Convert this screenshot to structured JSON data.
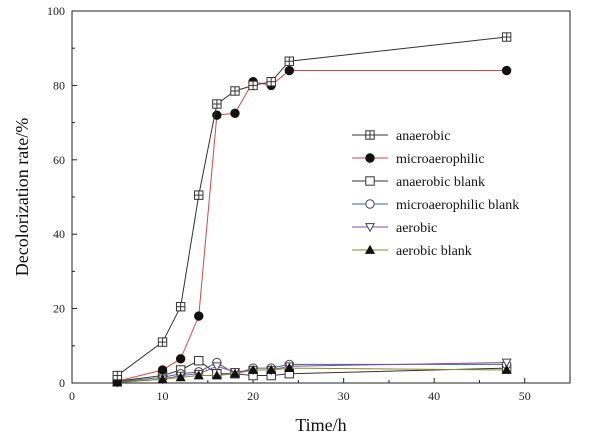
{
  "chart_data": {
    "type": "line",
    "xlabel": "Time/h",
    "ylabel": "Decolorization rate/%",
    "xlim": [
      0,
      55
    ],
    "ylim": [
      0,
      100
    ],
    "xticks": [
      0,
      10,
      20,
      30,
      40,
      50
    ],
    "yticks": [
      0,
      20,
      40,
      60,
      80,
      100
    ],
    "grid": false,
    "legend_position": "center-right",
    "series": [
      {
        "name": "anaerobic",
        "marker": "boxplus",
        "color": "#333333",
        "x": [
          5,
          10,
          12,
          14,
          16,
          18,
          20,
          22,
          24,
          48
        ],
        "y": [
          2,
          11,
          20.5,
          50.5,
          75,
          78.5,
          80,
          81,
          86.5,
          93
        ]
      },
      {
        "name": "microaerophilic",
        "marker": "circle-filled",
        "color": "#d04848",
        "x": [
          5,
          10,
          12,
          14,
          16,
          18,
          20,
          22,
          24,
          48
        ],
        "y": [
          0.5,
          3.5,
          6.5,
          18,
          72,
          72.5,
          81,
          80,
          84,
          84
        ]
      },
      {
        "name": "anaerobic blank",
        "marker": "square-open",
        "color": "#333333",
        "x": [
          5,
          10,
          12,
          14,
          16,
          18,
          20,
          22,
          24,
          48
        ],
        "y": [
          0.5,
          2,
          3.5,
          6,
          2.5,
          2.5,
          2,
          2,
          2.5,
          4
        ]
      },
      {
        "name": "microaerophilic blank",
        "marker": "circle-open",
        "color": "#3a6a8a",
        "x": [
          5,
          10,
          12,
          14,
          16,
          18,
          20,
          22,
          24,
          48
        ],
        "y": [
          0.3,
          1.5,
          2.5,
          3,
          5.5,
          2.5,
          4,
          4,
          5,
          5
        ]
      },
      {
        "name": "aerobic",
        "marker": "triangle-down-open",
        "color": "#8a4aa0",
        "x": [
          5,
          10,
          12,
          14,
          16,
          18,
          20,
          22,
          24,
          48
        ],
        "y": [
          0.2,
          1,
          2,
          2.5,
          4.5,
          3,
          3.5,
          3.5,
          4.5,
          5.5
        ]
      },
      {
        "name": "aerobic blank",
        "marker": "triangle-up-filled",
        "color": "#8a8a30",
        "x": [
          5,
          10,
          12,
          14,
          16,
          18,
          20,
          22,
          24,
          48
        ],
        "y": [
          0.1,
          1,
          1.5,
          2,
          2,
          2.5,
          3.5,
          3.5,
          4,
          3.5
        ]
      }
    ]
  }
}
